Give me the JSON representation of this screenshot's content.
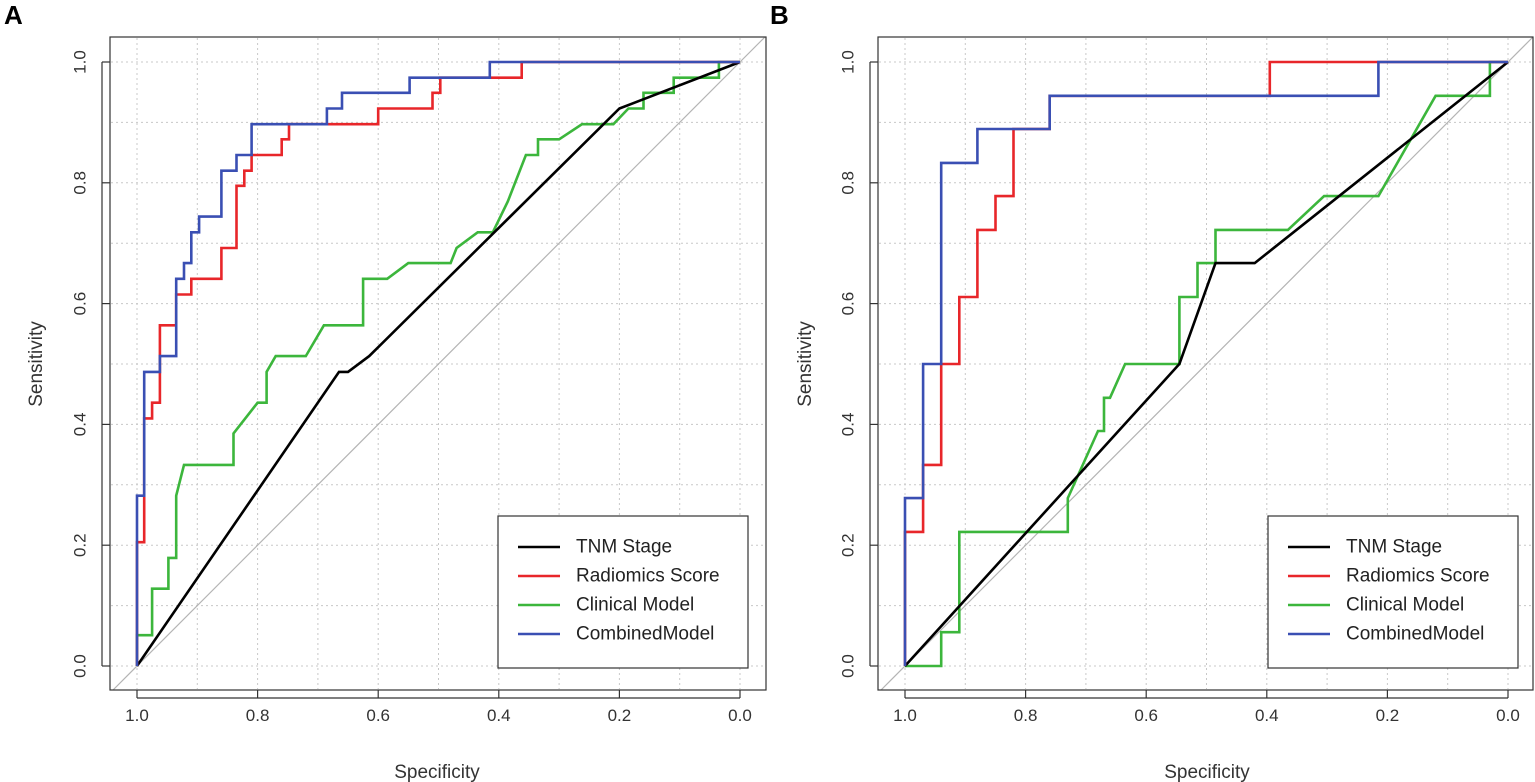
{
  "chart_data": [
    {
      "panel_label": "A",
      "type": "line",
      "xlabel": "Specificity",
      "ylabel": "Sensitivity",
      "xlim": [
        1.0,
        0.0
      ],
      "ylim": [
        0.0,
        1.0
      ],
      "x_ticks": [
        "1.0",
        "0.8",
        "0.6",
        "0.4",
        "0.2",
        "0.0"
      ],
      "y_ticks": [
        "0.0",
        "0.2",
        "0.4",
        "0.6",
        "0.8",
        "1.0"
      ],
      "grid": true,
      "legend_position": "bottom-right",
      "series": [
        {
          "name": "TNM Stage",
          "color": "#000000",
          "points": [
            [
              1.0,
              0.0
            ],
            [
              0.665,
              0.487
            ],
            [
              0.65,
              0.487
            ],
            [
              0.615,
              0.513
            ],
            [
              0.2,
              0.923
            ],
            [
              0.0,
              1.0
            ]
          ]
        },
        {
          "name": "Radiomics Score",
          "color": "#e8262a",
          "points": [
            [
              1.0,
              0.0
            ],
            [
              1.0,
              0.205
            ],
            [
              0.988,
              0.205
            ],
            [
              0.988,
              0.41
            ],
            [
              0.975,
              0.41
            ],
            [
              0.975,
              0.436
            ],
            [
              0.962,
              0.436
            ],
            [
              0.962,
              0.564
            ],
            [
              0.935,
              0.564
            ],
            [
              0.935,
              0.615
            ],
            [
              0.91,
              0.615
            ],
            [
              0.91,
              0.641
            ],
            [
              0.86,
              0.641
            ],
            [
              0.86,
              0.692
            ],
            [
              0.835,
              0.692
            ],
            [
              0.835,
              0.795
            ],
            [
              0.822,
              0.795
            ],
            [
              0.822,
              0.82
            ],
            [
              0.81,
              0.82
            ],
            [
              0.81,
              0.846
            ],
            [
              0.76,
              0.846
            ],
            [
              0.76,
              0.872
            ],
            [
              0.748,
              0.872
            ],
            [
              0.748,
              0.897
            ],
            [
              0.6,
              0.897
            ],
            [
              0.6,
              0.923
            ],
            [
              0.51,
              0.923
            ],
            [
              0.51,
              0.949
            ],
            [
              0.497,
              0.949
            ],
            [
              0.497,
              0.974
            ],
            [
              0.362,
              0.974
            ],
            [
              0.362,
              1.0
            ],
            [
              0.0,
              1.0
            ]
          ]
        },
        {
          "name": "Clinical Model",
          "color": "#3cb63c",
          "points": [
            [
              1.0,
              0.0
            ],
            [
              1.0,
              0.051
            ],
            [
              0.975,
              0.051
            ],
            [
              0.975,
              0.128
            ],
            [
              0.948,
              0.128
            ],
            [
              0.948,
              0.179
            ],
            [
              0.935,
              0.179
            ],
            [
              0.935,
              0.282
            ],
            [
              0.922,
              0.333
            ],
            [
              0.84,
              0.333
            ],
            [
              0.84,
              0.385
            ],
            [
              0.8,
              0.436
            ],
            [
              0.785,
              0.436
            ],
            [
              0.785,
              0.487
            ],
            [
              0.77,
              0.513
            ],
            [
              0.72,
              0.513
            ],
            [
              0.69,
              0.564
            ],
            [
              0.625,
              0.564
            ],
            [
              0.625,
              0.641
            ],
            [
              0.585,
              0.641
            ],
            [
              0.55,
              0.667
            ],
            [
              0.48,
              0.667
            ],
            [
              0.47,
              0.692
            ],
            [
              0.435,
              0.718
            ],
            [
              0.41,
              0.718
            ],
            [
              0.385,
              0.769
            ],
            [
              0.355,
              0.846
            ],
            [
              0.335,
              0.846
            ],
            [
              0.335,
              0.872
            ],
            [
              0.3,
              0.872
            ],
            [
              0.262,
              0.897
            ],
            [
              0.21,
              0.897
            ],
            [
              0.185,
              0.923
            ],
            [
              0.16,
              0.923
            ],
            [
              0.16,
              0.949
            ],
            [
              0.11,
              0.949
            ],
            [
              0.11,
              0.974
            ],
            [
              0.035,
              0.974
            ],
            [
              0.035,
              1.0
            ],
            [
              0.0,
              1.0
            ]
          ]
        },
        {
          "name": "CombinedModel",
          "color": "#3a4fb3",
          "points": [
            [
              1.0,
              0.0
            ],
            [
              1.0,
              0.282
            ],
            [
              0.988,
              0.282
            ],
            [
              0.988,
              0.487
            ],
            [
              0.962,
              0.487
            ],
            [
              0.962,
              0.513
            ],
            [
              0.935,
              0.513
            ],
            [
              0.935,
              0.641
            ],
            [
              0.922,
              0.641
            ],
            [
              0.922,
              0.667
            ],
            [
              0.91,
              0.667
            ],
            [
              0.91,
              0.718
            ],
            [
              0.897,
              0.718
            ],
            [
              0.897,
              0.744
            ],
            [
              0.86,
              0.744
            ],
            [
              0.86,
              0.82
            ],
            [
              0.835,
              0.82
            ],
            [
              0.835,
              0.846
            ],
            [
              0.81,
              0.846
            ],
            [
              0.81,
              0.897
            ],
            [
              0.685,
              0.897
            ],
            [
              0.685,
              0.923
            ],
            [
              0.66,
              0.923
            ],
            [
              0.66,
              0.949
            ],
            [
              0.548,
              0.949
            ],
            [
              0.548,
              0.974
            ],
            [
              0.415,
              0.974
            ],
            [
              0.415,
              1.0
            ],
            [
              0.0,
              1.0
            ]
          ]
        }
      ]
    },
    {
      "panel_label": "B",
      "type": "line",
      "xlabel": "Specificity",
      "ylabel": "Sensitivity",
      "xlim": [
        1.0,
        0.0
      ],
      "ylim": [
        0.0,
        1.0
      ],
      "x_ticks": [
        "1.0",
        "0.8",
        "0.6",
        "0.4",
        "0.2",
        "0.0"
      ],
      "y_ticks": [
        "0.0",
        "0.2",
        "0.4",
        "0.6",
        "0.8",
        "1.0"
      ],
      "grid": true,
      "legend_position": "bottom-right",
      "series": [
        {
          "name": "TNM Stage",
          "color": "#000000",
          "points": [
            [
              1.0,
              0.0
            ],
            [
              0.545,
              0.5
            ],
            [
              0.485,
              0.667
            ],
            [
              0.42,
              0.667
            ],
            [
              0.0,
              1.0
            ]
          ]
        },
        {
          "name": "Radiomics Score",
          "color": "#e8262a",
          "points": [
            [
              1.0,
              0.0
            ],
            [
              1.0,
              0.222
            ],
            [
              0.97,
              0.222
            ],
            [
              0.97,
              0.333
            ],
            [
              0.94,
              0.333
            ],
            [
              0.94,
              0.5
            ],
            [
              0.91,
              0.5
            ],
            [
              0.91,
              0.611
            ],
            [
              0.88,
              0.611
            ],
            [
              0.88,
              0.722
            ],
            [
              0.85,
              0.722
            ],
            [
              0.85,
              0.778
            ],
            [
              0.82,
              0.778
            ],
            [
              0.82,
              0.889
            ],
            [
              0.76,
              0.889
            ],
            [
              0.76,
              0.944
            ],
            [
              0.395,
              0.944
            ],
            [
              0.395,
              1.0
            ],
            [
              0.0,
              1.0
            ]
          ]
        },
        {
          "name": "Clinical Model",
          "color": "#3cb63c",
          "points": [
            [
              1.0,
              0.0
            ],
            [
              0.94,
              0.0
            ],
            [
              0.94,
              0.056
            ],
            [
              0.91,
              0.056
            ],
            [
              0.91,
              0.222
            ],
            [
              0.73,
              0.222
            ],
            [
              0.73,
              0.278
            ],
            [
              0.68,
              0.389
            ],
            [
              0.67,
              0.389
            ],
            [
              0.67,
              0.444
            ],
            [
              0.66,
              0.444
            ],
            [
              0.635,
              0.5
            ],
            [
              0.545,
              0.5
            ],
            [
              0.545,
              0.611
            ],
            [
              0.515,
              0.611
            ],
            [
              0.515,
              0.667
            ],
            [
              0.485,
              0.667
            ],
            [
              0.485,
              0.722
            ],
            [
              0.365,
              0.722
            ],
            [
              0.305,
              0.778
            ],
            [
              0.215,
              0.778
            ],
            [
              0.12,
              0.944
            ],
            [
              0.03,
              0.944
            ],
            [
              0.03,
              1.0
            ],
            [
              0.0,
              1.0
            ]
          ]
        },
        {
          "name": "CombinedModel",
          "color": "#3a4fb3",
          "points": [
            [
              1.0,
              0.0
            ],
            [
              1.0,
              0.278
            ],
            [
              0.97,
              0.278
            ],
            [
              0.97,
              0.5
            ],
            [
              0.94,
              0.5
            ],
            [
              0.94,
              0.833
            ],
            [
              0.88,
              0.833
            ],
            [
              0.88,
              0.889
            ],
            [
              0.76,
              0.889
            ],
            [
              0.76,
              0.944
            ],
            [
              0.215,
              0.944
            ],
            [
              0.215,
              1.0
            ],
            [
              0.0,
              1.0
            ]
          ]
        }
      ]
    }
  ],
  "style": {
    "grid_color": "#c8c8c8",
    "diagonal_color": "#b4b4b4",
    "frame_color": "#333333"
  }
}
